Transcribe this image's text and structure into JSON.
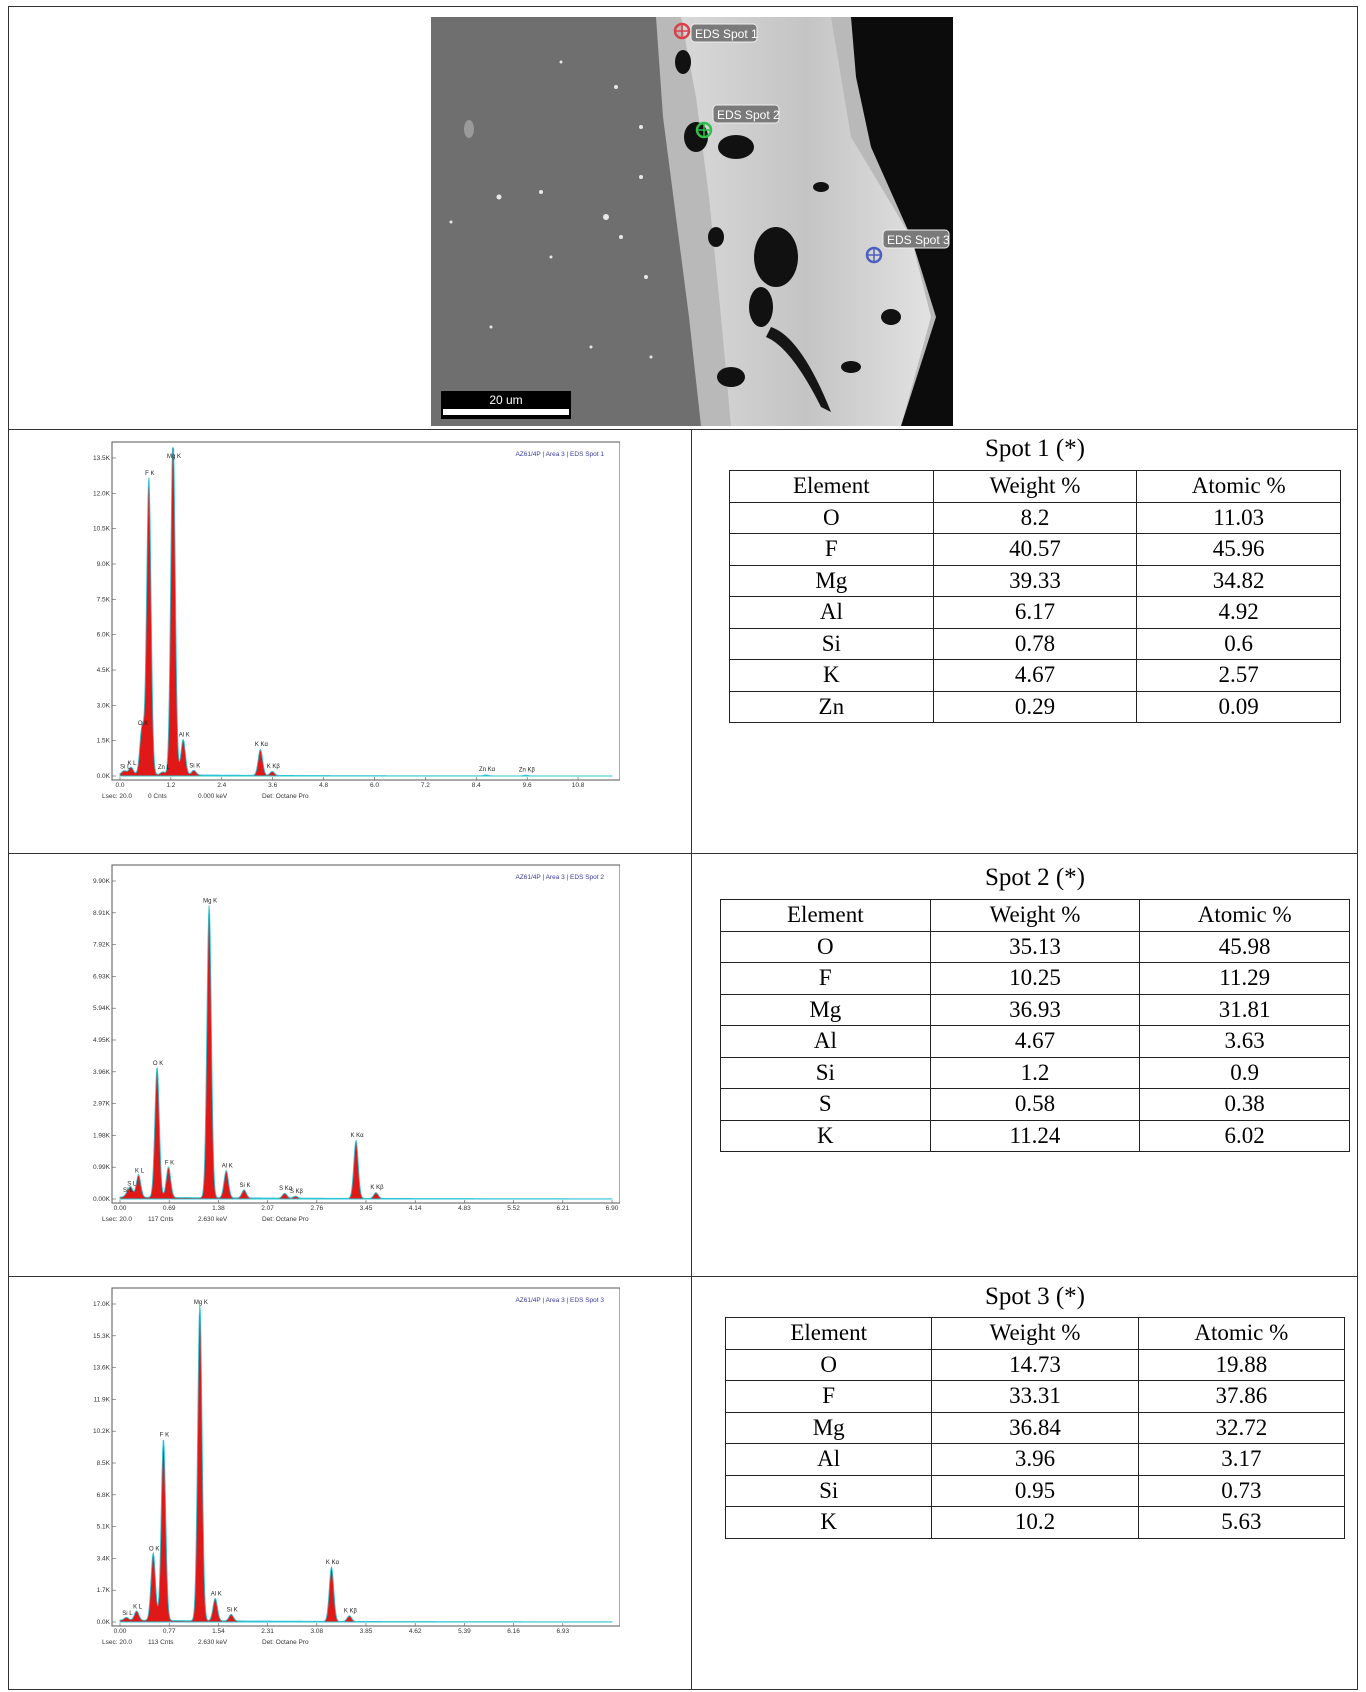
{
  "sem_image": {
    "labels": [
      "EDS Spot 1",
      "EDS Spot 2",
      "EDS Spot 3"
    ],
    "marker_colors": [
      "#d9404a",
      "#2fbf4a",
      "#4a5fc0"
    ],
    "scale_bar": "20 um"
  },
  "spectra": [
    {
      "header": "AZ61/4P | Area 3 | EDS Spot 1",
      "y_ticks": [
        "0.0K",
        "1.5K",
        "3.0K",
        "4.5K",
        "6.0K",
        "7.5K",
        "9.0K",
        "10.5K",
        "12.0K",
        "13.5K"
      ],
      "x_ticks": [
        "0.0",
        "1.2",
        "2.4",
        "3.6",
        "4.8",
        "6.0",
        "7.2",
        "8.4",
        "9.6",
        "10.8"
      ],
      "footer": {
        "lsec": "Lsec: 20.0",
        "cnts": "0 Cnts",
        "kev": "0.000 keV",
        "det": "Det: Octane Pro"
      },
      "chart_data": {
        "type": "line",
        "xlabel": "",
        "ylabel": "",
        "xlim": [
          0,
          11.6
        ],
        "ylim": [
          0,
          13500
        ],
        "peaks": [
          {
            "label": "K L",
            "x": 0.26,
            "y": 300
          },
          {
            "label": "Si L",
            "x": 0.1,
            "y": 150
          },
          {
            "label": "O K",
            "x": 0.52,
            "y": 2000
          },
          {
            "label": "F K",
            "x": 0.68,
            "y": 12600
          },
          {
            "label": "Zn L",
            "x": 1.01,
            "y": 120
          },
          {
            "label": "Mg K",
            "x": 1.25,
            "y": 14600
          },
          {
            "label": "Al K",
            "x": 1.49,
            "y": 1500
          },
          {
            "label": "Si K",
            "x": 1.74,
            "y": 200
          },
          {
            "label": "K Kα",
            "x": 3.31,
            "y": 1100
          },
          {
            "label": "K Kβ",
            "x": 3.59,
            "y": 170
          },
          {
            "label": "Zn Kα",
            "x": 8.63,
            "y": 40
          },
          {
            "label": "Zn Kβ",
            "x": 9.57,
            "y": 30
          }
        ]
      }
    },
    {
      "header": "AZ61/4P | Area 3 | EDS Spot 2",
      "y_ticks": [
        "0.00K",
        "0.99K",
        "1.98K",
        "2.97K",
        "3.96K",
        "4.95K",
        "5.94K",
        "6.93K",
        "7.92K",
        "8.91K",
        "9.90K"
      ],
      "x_ticks": [
        "0.00",
        "0.69",
        "1.38",
        "2.07",
        "2.76",
        "3.45",
        "4.14",
        "4.83",
        "5.52",
        "6.21",
        "6.90"
      ],
      "footer": {
        "lsec": "Lsec: 20.0",
        "cnts": "117 Cnts",
        "kev": "2.630 keV",
        "det": "Det: Octane Pro"
      },
      "chart_data": {
        "type": "line",
        "xlabel": "",
        "ylabel": "",
        "xlim": [
          0,
          6.9
        ],
        "ylim": [
          0,
          9900
        ],
        "peaks": [
          {
            "label": "S L",
            "x": 0.15,
            "y": 300
          },
          {
            "label": "Si L",
            "x": 0.1,
            "y": 100
          },
          {
            "label": "K L",
            "x": 0.26,
            "y": 700
          },
          {
            "label": "O K",
            "x": 0.52,
            "y": 4050
          },
          {
            "label": "F K",
            "x": 0.68,
            "y": 950
          },
          {
            "label": "Mg K",
            "x": 1.25,
            "y": 9100
          },
          {
            "label": "Al K",
            "x": 1.49,
            "y": 850
          },
          {
            "label": "Si K",
            "x": 1.74,
            "y": 250
          },
          {
            "label": "S Kα",
            "x": 2.31,
            "y": 150
          },
          {
            "label": "S Kβ",
            "x": 2.46,
            "y": 60
          },
          {
            "label": "K Kα",
            "x": 3.31,
            "y": 1800
          },
          {
            "label": "K Kβ",
            "x": 3.59,
            "y": 180
          }
        ]
      }
    },
    {
      "header": "AZ61/4P | Area 3 | EDS Spot 3",
      "y_ticks": [
        "0.0K",
        "1.7K",
        "3.4K",
        "5.1K",
        "6.8K",
        "8.5K",
        "10.2K",
        "11.9K",
        "13.6K",
        "15.3K",
        "17.0K"
      ],
      "x_ticks": [
        "0.00",
        "0.77",
        "1.54",
        "2.31",
        "3.08",
        "3.85",
        "4.62",
        "5.39",
        "6.16",
        "6.93"
      ],
      "footer": {
        "lsec": "Lsec: 20.0",
        "cnts": "113 Cnts",
        "kev": "2.630 keV",
        "det": "Det: Octane Pro"
      },
      "chart_data": {
        "type": "line",
        "xlabel": "",
        "ylabel": "",
        "xlim": [
          0,
          7.7
        ],
        "ylim": [
          0,
          17000
        ],
        "peaks": [
          {
            "label": "Si L",
            "x": 0.1,
            "y": 150
          },
          {
            "label": "K L",
            "x": 0.26,
            "y": 500
          },
          {
            "label": "O K",
            "x": 0.52,
            "y": 3600
          },
          {
            "label": "F K",
            "x": 0.68,
            "y": 9700
          },
          {
            "label": "Mg K",
            "x": 1.25,
            "y": 16900
          },
          {
            "label": "Al K",
            "x": 1.49,
            "y": 1200
          },
          {
            "label": "Si K",
            "x": 1.74,
            "y": 350
          },
          {
            "label": "K Kα",
            "x": 3.31,
            "y": 2900
          },
          {
            "label": "K Kβ",
            "x": 3.59,
            "y": 300
          }
        ]
      }
    }
  ],
  "tables": [
    {
      "title": "Spot 1 (*)",
      "headers": [
        "Element",
        "Weight %",
        "Atomic %"
      ],
      "rows": [
        [
          "O",
          "8.2",
          "11.03"
        ],
        [
          "F",
          "40.57",
          "45.96"
        ],
        [
          "Mg",
          "39.33",
          "34.82"
        ],
        [
          "Al",
          "6.17",
          "4.92"
        ],
        [
          "Si",
          "0.78",
          "0.6"
        ],
        [
          "K",
          "4.67",
          "2.57"
        ],
        [
          "Zn",
          "0.29",
          "0.09"
        ]
      ]
    },
    {
      "title": "Spot 2 (*)",
      "headers": [
        "Element",
        "Weight %",
        "Atomic %"
      ],
      "rows": [
        [
          "O",
          "35.13",
          "45.98"
        ],
        [
          "F",
          "10.25",
          "11.29"
        ],
        [
          "Mg",
          "36.93",
          "31.81"
        ],
        [
          "Al",
          "4.67",
          "3.63"
        ],
        [
          "Si",
          "1.2",
          "0.9"
        ],
        [
          "S",
          "0.58",
          "0.38"
        ],
        [
          "K",
          "11.24",
          "6.02"
        ]
      ]
    },
    {
      "title": "Spot 3 (*)",
      "headers": [
        "Element",
        "Weight %",
        "Atomic %"
      ],
      "rows": [
        [
          "O",
          "14.73",
          "19.88"
        ],
        [
          "F",
          "33.31",
          "37.86"
        ],
        [
          "Mg",
          "36.84",
          "32.72"
        ],
        [
          "Al",
          "3.96",
          "3.17"
        ],
        [
          "Si",
          "0.95",
          "0.73"
        ],
        [
          "K",
          "10.2",
          "5.63"
        ]
      ]
    }
  ]
}
